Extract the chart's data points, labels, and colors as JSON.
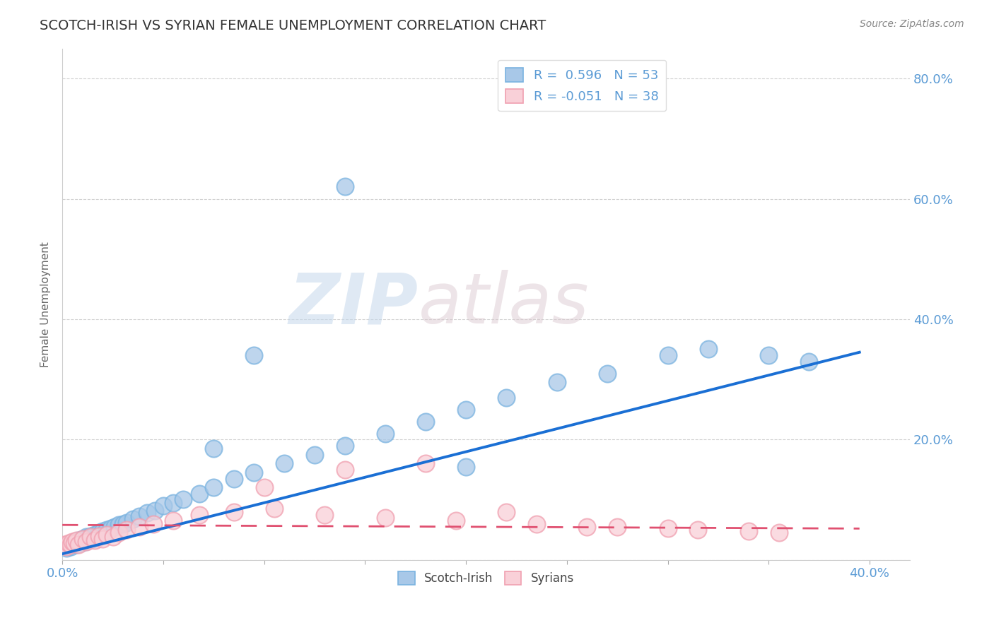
{
  "title": "SCOTCH-IRISH VS SYRIAN FEMALE UNEMPLOYMENT CORRELATION CHART",
  "source_text": "Source: ZipAtlas.com",
  "ylabel": "Female Unemployment",
  "xlim": [
    0.0,
    0.42
  ],
  "ylim": [
    0.0,
    0.85
  ],
  "scotch_irish_color": "#a8c8e8",
  "scotch_irish_edge": "#7ab3e0",
  "syrian_color": "#f9d0d8",
  "syrian_edge": "#f0a0b0",
  "regression_scotch_color": "#1a6fd4",
  "regression_syrian_color": "#e05070",
  "background_color": "#ffffff",
  "grid_color": "#cccccc",
  "legend_R_scotch": " 0.596",
  "legend_N_scotch": "53",
  "legend_R_syrian": "-0.051",
  "legend_N_syrian": "38",
  "watermark_zip": "ZIP",
  "watermark_atlas": "atlas",
  "tick_color": "#5b9bd5",
  "scotch_irish_x": [
    0.002,
    0.003,
    0.004,
    0.005,
    0.006,
    0.007,
    0.008,
    0.009,
    0.01,
    0.011,
    0.012,
    0.013,
    0.014,
    0.015,
    0.016,
    0.017,
    0.018,
    0.019,
    0.02,
    0.022,
    0.024,
    0.026,
    0.028,
    0.03,
    0.032,
    0.035,
    0.038,
    0.042,
    0.046,
    0.05,
    0.055,
    0.06,
    0.068,
    0.075,
    0.085,
    0.095,
    0.11,
    0.125,
    0.14,
    0.16,
    0.18,
    0.2,
    0.22,
    0.245,
    0.27,
    0.3,
    0.32,
    0.35,
    0.37,
    0.14,
    0.095,
    0.075,
    0.2
  ],
  "scotch_irish_y": [
    0.02,
    0.025,
    0.022,
    0.028,
    0.03,
    0.025,
    0.032,
    0.028,
    0.035,
    0.03,
    0.038,
    0.033,
    0.04,
    0.035,
    0.042,
    0.038,
    0.045,
    0.04,
    0.048,
    0.05,
    0.052,
    0.055,
    0.058,
    0.06,
    0.062,
    0.068,
    0.072,
    0.078,
    0.082,
    0.09,
    0.095,
    0.1,
    0.11,
    0.12,
    0.135,
    0.145,
    0.16,
    0.175,
    0.19,
    0.21,
    0.23,
    0.25,
    0.27,
    0.295,
    0.31,
    0.34,
    0.35,
    0.34,
    0.33,
    0.62,
    0.34,
    0.185,
    0.155
  ],
  "syrian_x": [
    0.001,
    0.002,
    0.003,
    0.004,
    0.005,
    0.006,
    0.007,
    0.008,
    0.01,
    0.012,
    0.014,
    0.016,
    0.018,
    0.02,
    0.022,
    0.025,
    0.028,
    0.032,
    0.038,
    0.045,
    0.055,
    0.068,
    0.085,
    0.105,
    0.13,
    0.16,
    0.195,
    0.235,
    0.275,
    0.315,
    0.355,
    0.1,
    0.14,
    0.18,
    0.22,
    0.26,
    0.3,
    0.34
  ],
  "syrian_y": [
    0.025,
    0.022,
    0.028,
    0.025,
    0.03,
    0.028,
    0.032,
    0.025,
    0.035,
    0.03,
    0.038,
    0.033,
    0.04,
    0.035,
    0.042,
    0.038,
    0.045,
    0.05,
    0.055,
    0.06,
    0.065,
    0.075,
    0.08,
    0.085,
    0.075,
    0.07,
    0.065,
    0.06,
    0.055,
    0.05,
    0.045,
    0.12,
    0.15,
    0.16,
    0.08,
    0.055,
    0.052,
    0.048
  ],
  "regression_si_x0": 0.0,
  "regression_si_x1": 0.395,
  "regression_si_y0": 0.01,
  "regression_si_y1": 0.345,
  "regression_sy_x0": 0.0,
  "regression_sy_x1": 0.395,
  "regression_sy_y0": 0.058,
  "regression_sy_y1": 0.052
}
